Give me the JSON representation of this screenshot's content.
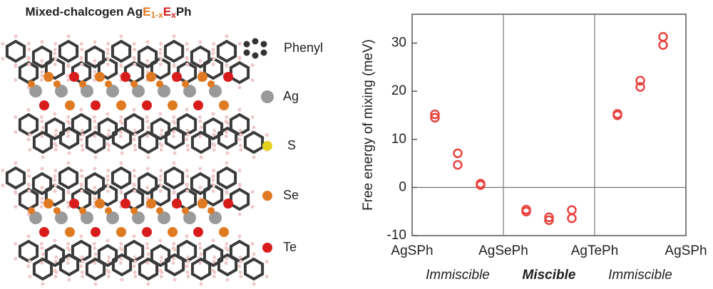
{
  "structure_panel": {
    "title_parts": [
      "Mixed-chalcogen Ag",
      "E",
      "1-x",
      "E",
      "x",
      "Ph"
    ],
    "legend": [
      "Phenyl",
      "Ag",
      "S",
      "Se",
      "Te"
    ]
  },
  "chart_data": {
    "type": "scatter",
    "ylabel": "Free energy of mixing (meV)",
    "x": [
      0.25,
      0.25,
      0.5,
      0.5,
      0.75,
      0.75,
      1.25,
      1.25,
      1.5,
      1.5,
      1.75,
      1.75,
      2.25,
      2.25,
      2.5,
      2.5,
      2.75,
      2.75
    ],
    "values": [
      15.2,
      14.5,
      7.1,
      4.7,
      0.8,
      0.5,
      -4.6,
      -5,
      -6.2,
      -6.8,
      -4.7,
      -6.4,
      15.3,
      15,
      22.2,
      20.9,
      31.3,
      29.6
    ],
    "color": "#e8443f",
    "xlim": [
      0,
      3
    ],
    "xticks": [
      {
        "value": 0,
        "label": "AgSPh"
      },
      {
        "value": 1,
        "label": "AgSePh"
      },
      {
        "value": 2,
        "label": "AgTePh"
      },
      {
        "value": 3,
        "label": "AgSPh"
      }
    ],
    "ylim": [
      -10,
      36
    ],
    "yticks": [
      -10,
      0,
      10,
      20,
      30
    ],
    "reference_y": 0,
    "regions": [
      {
        "label": "Immiscible",
        "x": 0.5,
        "bold": false
      },
      {
        "label": "Miscible",
        "x": 1.5,
        "bold": true
      },
      {
        "label": "Immiscible",
        "x": 2.5,
        "bold": false
      }
    ],
    "region_color": "#4a78c8"
  }
}
